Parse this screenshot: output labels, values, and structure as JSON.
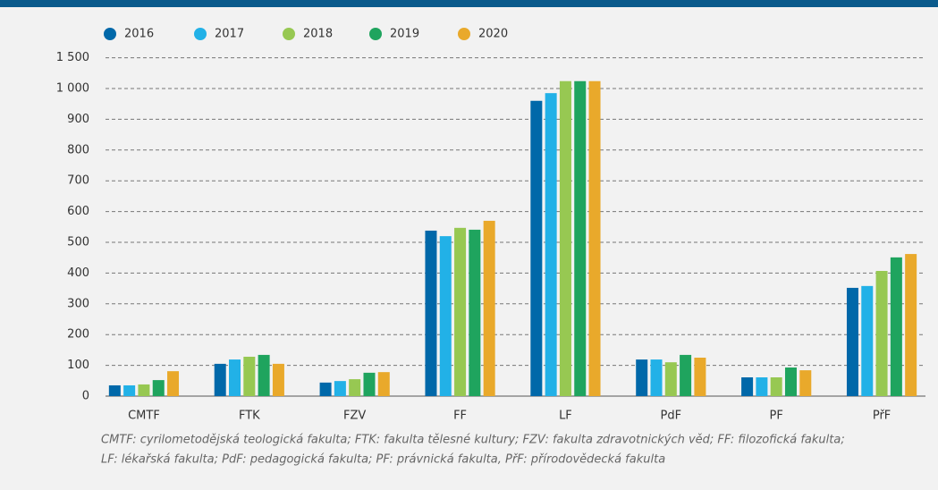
{
  "chart_data": {
    "type": "bar",
    "categories": [
      "CMTF",
      "FTK",
      "FZV",
      "FF",
      "LF",
      "PdF",
      "PF",
      "PřF"
    ],
    "series": [
      {
        "name": "2016",
        "color": "#0068a9",
        "values": [
          35,
          105,
          44,
          538,
          960,
          119,
          61,
          352
        ]
      },
      {
        "name": "2017",
        "color": "#22b1e7",
        "values": [
          35,
          119,
          49,
          520,
          985,
          119,
          61,
          358
        ]
      },
      {
        "name": "2018",
        "color": "#97c852",
        "values": [
          38,
          128,
          55,
          547,
          1120,
          110,
          61,
          407
        ]
      },
      {
        "name": "2019",
        "color": "#1fa45e",
        "values": [
          52,
          134,
          76,
          541,
          1120,
          134,
          93,
          451
        ]
      },
      {
        "name": "2020",
        "color": "#e9a92b",
        "values": [
          81,
          105,
          78,
          570,
          1120,
          125,
          84,
          462
        ]
      }
    ],
    "ylim": [
      0,
      1500
    ],
    "yticks": [
      0,
      100,
      200,
      300,
      400,
      500,
      600,
      700,
      800,
      900,
      {
        "value": 1000,
        "label": "1 000"
      },
      {
        "value": 1500,
        "label": "1 500"
      }
    ],
    "scale": "even-tick-spacing",
    "grid": true,
    "legend": "top",
    "footnote": [
      "CMTF: cyrilometodějská teologická fakulta; FTK: fakulta tělesné kultury; FZV: fakulta zdravotnických věd; FF: filozofická fakulta;",
      "LF: lékařská fakulta; PdF: pedagogická fakulta; PF: právnická fakulta, PřF: přírodovědecká fakulta"
    ]
  }
}
